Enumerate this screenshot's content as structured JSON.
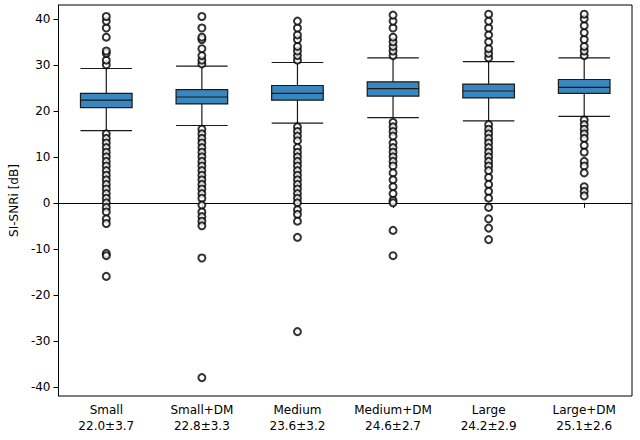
{
  "chart_data": {
    "type": "boxplot",
    "y_label": "SI-SNRi [dB]",
    "categories": [
      "Small",
      "Small+DM",
      "Medium",
      "Medium+DM",
      "Large",
      "Large+DM"
    ],
    "summaries": [
      "22.0±3.7",
      "22.8±3.3",
      "23.6±3.2",
      "24.6±2.7",
      "24.2±2.9",
      "25.1±2.6"
    ],
    "boxes": [
      [
        15.7,
        20.7,
        22.3,
        23.8,
        29.2
      ],
      [
        16.8,
        21.5,
        23.0,
        24.6,
        29.7
      ],
      [
        17.3,
        22.3,
        23.8,
        25.5,
        30.5
      ],
      [
        18.5,
        23.2,
        24.8,
        26.3,
        31.5
      ],
      [
        17.8,
        22.8,
        24.3,
        25.8,
        30.7
      ],
      [
        18.8,
        23.8,
        25.1,
        26.8,
        31.5
      ]
    ],
    "outliers": [
      [
        30.0,
        31.0,
        32.5,
        33.0,
        36.0,
        38.0,
        39.5,
        40.5,
        15.0,
        14.0,
        13.0,
        12.0,
        11.0,
        10.0,
        9.0,
        8.0,
        7.0,
        6.0,
        5.0,
        4.0,
        3.0,
        2.0,
        1.0,
        0.0,
        -1.0,
        -2.0,
        -3.5,
        -4.5,
        -11.0,
        -11.5,
        -16.0
      ],
      [
        30.2,
        31.0,
        32.0,
        33.5,
        35.5,
        36.0,
        38.0,
        40.5,
        16.0,
        15.0,
        14.0,
        13.0,
        12.0,
        11.0,
        10.0,
        9.0,
        8.0,
        7.0,
        6.0,
        5.0,
        4.0,
        3.0,
        2.0,
        1.0,
        -0.5,
        -2.0,
        -3.0,
        -4.0,
        -5.0,
        -12.0,
        -38.0
      ],
      [
        31.0,
        32.0,
        33.0,
        34.0,
        35.5,
        36.5,
        38.0,
        39.5,
        16.5,
        15.5,
        14.5,
        13.5,
        12.0,
        11.0,
        10.0,
        9.0,
        8.0,
        7.0,
        6.0,
        5.0,
        4.0,
        3.0,
        2.0,
        1.0,
        0.0,
        -1.5,
        -2.5,
        -4.0,
        -7.5,
        -28.0
      ],
      [
        32.0,
        33.0,
        34.0,
        35.0,
        36.0,
        38.0,
        39.5,
        40.8,
        17.5,
        16.5,
        15.5,
        14.5,
        13.0,
        12.0,
        11.0,
        10.0,
        9.0,
        8.0,
        6.5,
        5.0,
        3.5,
        2.0,
        0.5,
        0.0,
        -6.0,
        -11.5
      ],
      [
        31.5,
        32.5,
        33.5,
        35.0,
        36.5,
        38.0,
        39.5,
        41.0,
        17.0,
        16.0,
        15.0,
        14.0,
        13.0,
        12.0,
        11.0,
        10.0,
        9.0,
        8.0,
        7.0,
        5.5,
        4.0,
        2.5,
        1.0,
        -1.0,
        -3.5,
        -5.5,
        -8.0
      ],
      [
        32.0,
        33.0,
        34.0,
        35.5,
        37.0,
        38.5,
        40.0,
        41.0,
        18.0,
        17.0,
        16.0,
        15.0,
        14.0,
        12.5,
        11.0,
        9.0,
        8.0,
        6.5,
        3.5,
        2.5,
        1.5
      ]
    ],
    "color": "#3a87c0",
    "ylim": [
      -42,
      43
    ],
    "yticks": [
      -40,
      -30,
      -20,
      -10,
      0,
      10,
      20,
      30,
      40
    ],
    "grid": false
  }
}
